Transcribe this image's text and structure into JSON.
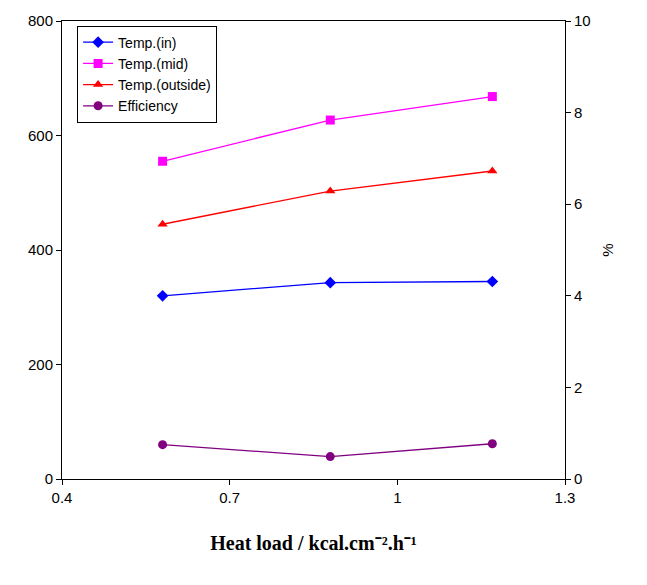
{
  "chart_data": {
    "type": "line",
    "x_label": "Heat load / kcal.cm⁻².h⁻¹",
    "y2_label": "%",
    "x": [
      0.58,
      0.88,
      1.17
    ],
    "series": [
      {
        "name": "Temp.(in)",
        "color": "#0000ff",
        "marker": "diamond",
        "values": [
          320,
          343,
          345
        ]
      },
      {
        "name": "Temp.(mid)",
        "color": "#ff00ff",
        "marker": "square",
        "values": [
          555,
          627,
          668
        ]
      },
      {
        "name": "Temp.(outside)",
        "color": "#ff0000",
        "marker": "triangle",
        "values": [
          445,
          503,
          538
        ]
      },
      {
        "name": "Efficiency",
        "color": "#800080",
        "marker": "circle",
        "axis": "y2",
        "values": [
          0.75,
          0.49,
          0.77
        ]
      }
    ],
    "xlim": [
      0.4,
      1.3
    ],
    "xticks": [
      0.4,
      0.7,
      1,
      1.3
    ],
    "ylim": [
      0,
      800
    ],
    "yticks": [
      0,
      200,
      400,
      600,
      800
    ],
    "y2lim": [
      0,
      10
    ],
    "y2ticks": [
      0,
      2,
      4,
      6,
      8,
      10
    ],
    "grid": false,
    "legend": "upper left"
  }
}
